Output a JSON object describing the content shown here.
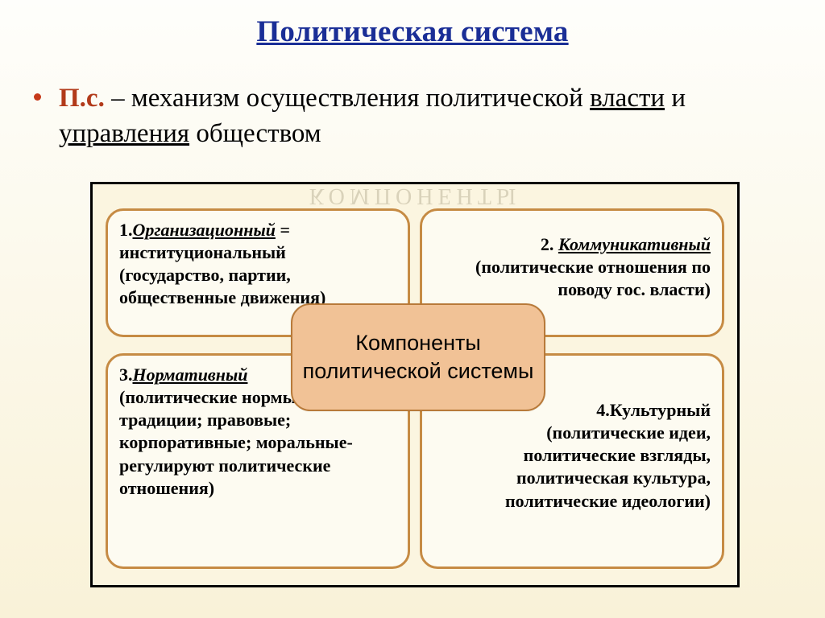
{
  "colors": {
    "title": "#1a2e96",
    "abbr": "#b23a1a",
    "bullet": "#c63a1a",
    "quad_border": "#c68b44",
    "quad_bg": "#fdfbf1",
    "center_bg": "#f1c296",
    "center_border": "#b87a3a",
    "frame_bg": "#fbf5e0",
    "watermark": "#bfb79c"
  },
  "title": "Политическая система",
  "definition": {
    "abbr": "П.с.",
    "dash": " – ",
    "part1": "механизм осуществления политической ",
    "u1": "власти",
    "mid": " и ",
    "u2": "управления",
    "part2": " обществом"
  },
  "watermark": "КОМПОНЕНТЫ",
  "center_label": "Компоненты политической системы",
  "quadrants": {
    "q1": {
      "num": "1.",
      "head": "Организационный",
      "eq": " = институциональный",
      "body": "(государство, партии, общественные движения)"
    },
    "q2": {
      "num": "2. ",
      "head": "Коммуникативный",
      "body": "(политические отношения по поводу гос. власти)"
    },
    "q3": {
      "num": "3.",
      "head": "Нормативный",
      "body": "(политические нормы: обычаи и традиции; правовые; корпоративные; моральные- регулируют политические отношения)"
    },
    "q4": {
      "num": "4.",
      "head_plain": "Культурный",
      "body": "(политические идеи, политические взгляды, политическая культура, политические идеологии)"
    }
  }
}
